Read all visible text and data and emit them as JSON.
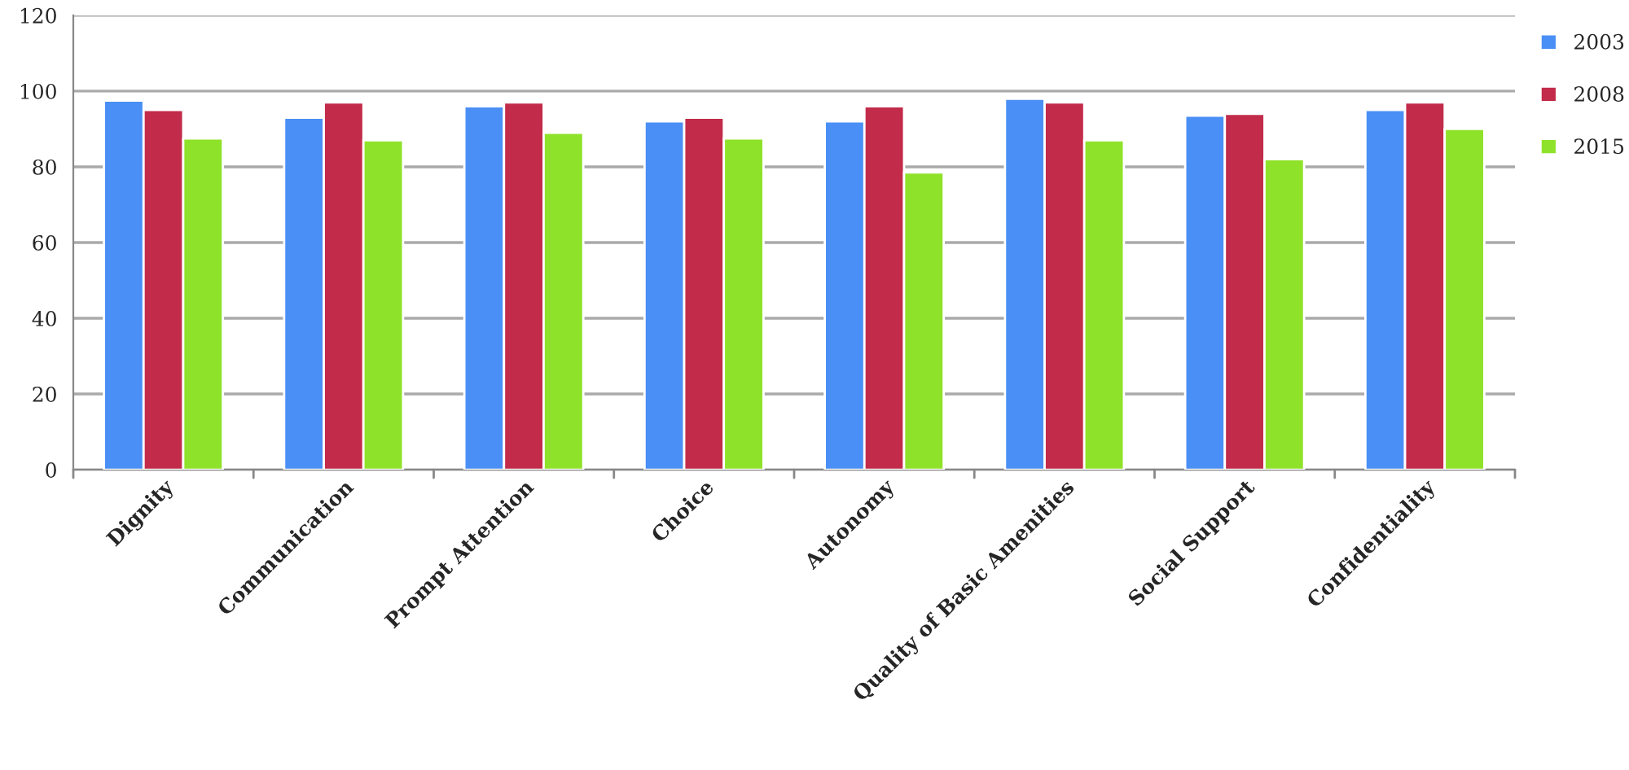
{
  "chart_data": {
    "type": "bar",
    "categories": [
      "Dignity",
      "Communication",
      "Prompt Attention",
      "Choice",
      "Autonomy",
      "Quality of Basic Amenities",
      "Social Support",
      "Confidentiality"
    ],
    "series": [
      {
        "name": "2003",
        "color": "#4a8ff5",
        "values": [
          97.5,
          93,
          96,
          92,
          92,
          98,
          93.5,
          95
        ]
      },
      {
        "name": "2008",
        "color": "#c22b4a",
        "values": [
          95,
          97,
          97,
          93,
          96,
          97,
          94,
          97
        ]
      },
      {
        "name": "2015",
        "color": "#8fe22a",
        "values": [
          87.5,
          87,
          89,
          87.5,
          78.5,
          87,
          82,
          90
        ]
      }
    ],
    "ylim": [
      0,
      120
    ],
    "yticks": [
      0,
      20,
      40,
      60,
      80,
      100,
      120
    ],
    "grid": "y",
    "legend": "right"
  }
}
